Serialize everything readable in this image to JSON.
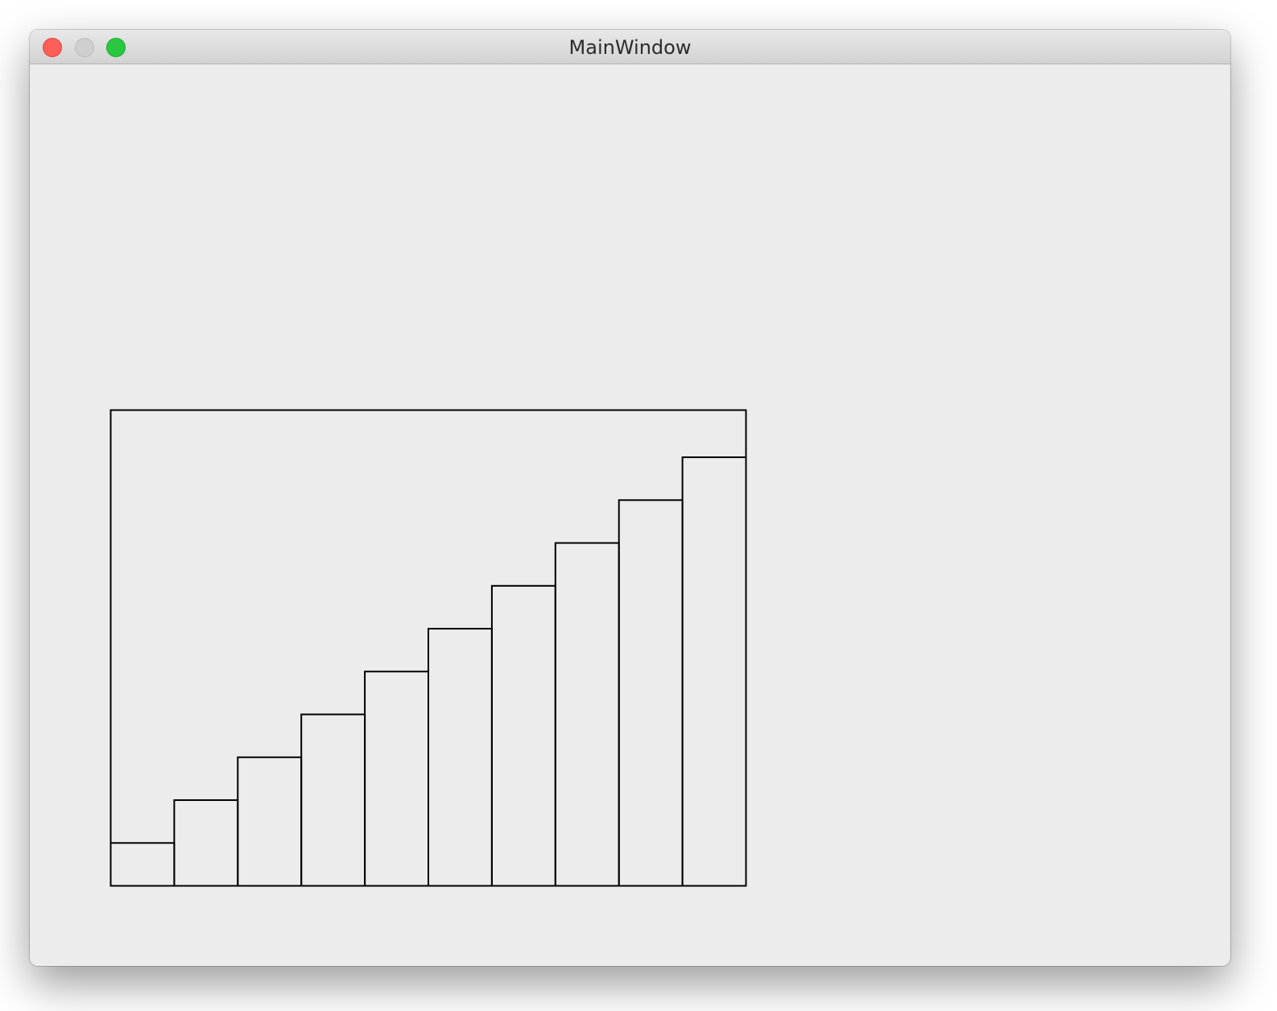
{
  "window": {
    "title": "MainWindow"
  },
  "colors": {
    "close": "#fe5f57",
    "minimize": "#d0cfd0",
    "zoom": "#29c840",
    "stroke": "#000000",
    "background": "#ececec"
  },
  "chart_data": {
    "type": "bar",
    "values": [
      1,
      2,
      3,
      4,
      5,
      6,
      7,
      8,
      9,
      10
    ],
    "ylim": [
      0,
      11.1
    ],
    "grid": false,
    "fill": "none"
  }
}
